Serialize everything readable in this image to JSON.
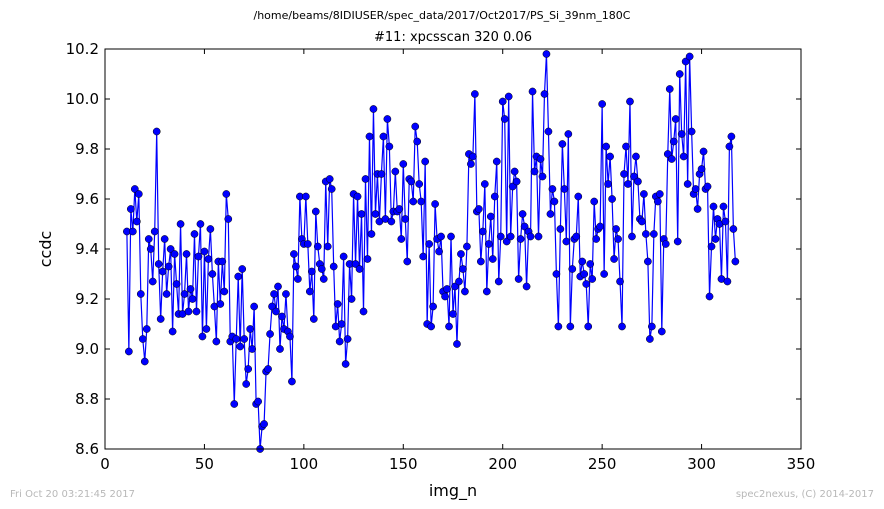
{
  "figure": {
    "suptitle": "/home/beams/8IDIUSER/spec_data/2017/Oct2017/PS_Si_39nm_180C",
    "footer_left": "Fri Oct 20 03:21:45 2017",
    "footer_right": "spec2nexus, (C) 2014-2017"
  },
  "chart_data": {
    "type": "line",
    "title": "#11: xpcsscan 320 0.06",
    "xlabel": "img_n",
    "ylabel": "ccdc",
    "xlim": [
      0,
      350
    ],
    "ylim": [
      8.6,
      10.2
    ],
    "xticks": [
      0,
      50,
      100,
      150,
      200,
      250,
      300,
      350
    ],
    "yticks": [
      8.6,
      8.8,
      9.0,
      9.2,
      9.4,
      9.6,
      9.8,
      10.0,
      10.2
    ],
    "grid": false,
    "line_color": "#0000ff",
    "marker": "circle",
    "x_start": 11,
    "series": [
      {
        "values": [
          9.47,
          8.99,
          9.56,
          9.47,
          9.64,
          9.51,
          9.62,
          9.22,
          9.04,
          8.95,
          9.08,
          9.44,
          9.4,
          9.27,
          9.47,
          9.87,
          9.34,
          9.12,
          9.31,
          9.44,
          9.22,
          9.33,
          9.4,
          9.07,
          9.38,
          9.26,
          9.14,
          9.5,
          9.14,
          9.22,
          9.38,
          9.15,
          9.24,
          9.2,
          9.46,
          9.15,
          9.37,
          9.5,
          9.05,
          9.39,
          9.08,
          9.36,
          9.48,
          9.3,
          9.17,
          9.03,
          9.35,
          9.18,
          9.35,
          9.23,
          9.62,
          9.52,
          9.03,
          9.05,
          8.78,
          9.04,
          9.29,
          9.01,
          9.32,
          9.04,
          8.86,
          8.92,
          9.08,
          9.0,
          9.17,
          8.78,
          8.79,
          8.6,
          8.69,
          8.7,
          8.91,
          8.92,
          9.06,
          9.17,
          9.22,
          9.15,
          9.25,
          9.0,
          9.13,
          9.08,
          9.22,
          9.07,
          9.05,
          8.87,
          9.38,
          9.33,
          9.28,
          9.61,
          9.44,
          9.42,
          9.61,
          9.42,
          9.23,
          9.31,
          9.12,
          9.55,
          9.41,
          9.34,
          9.32,
          9.28,
          9.67,
          9.41,
          9.68,
          9.64,
          9.33,
          9.09,
          9.18,
          9.03,
          9.1,
          9.37,
          8.94,
          9.04,
          9.34,
          9.2,
          9.62,
          9.34,
          9.61,
          9.32,
          9.54,
          9.15,
          9.68,
          9.36,
          9.85,
          9.46,
          9.96,
          9.54,
          9.7,
          9.51,
          9.7,
          9.85,
          9.52,
          9.92,
          9.81,
          9.51,
          9.55,
          9.71,
          9.55,
          9.56,
          9.44,
          9.74,
          9.52,
          9.35,
          9.68,
          9.67,
          9.59,
          9.89,
          9.83,
          9.66,
          9.59,
          9.37,
          9.75,
          9.1,
          9.42,
          9.09,
          9.17,
          9.58,
          9.44,
          9.39,
          9.45,
          9.23,
          9.21,
          9.24,
          9.09,
          9.45,
          9.14,
          9.25,
          9.02,
          9.27,
          9.38,
          9.32,
          9.23,
          9.41,
          9.78,
          9.74,
          9.77,
          10.02,
          9.55,
          9.56,
          9.35,
          9.47,
          9.66,
          9.23,
          9.42,
          9.53,
          9.36,
          9.61,
          9.75,
          9.27,
          9.45,
          9.99,
          9.92,
          9.43,
          10.01,
          9.45,
          9.65,
          9.71,
          9.67,
          9.28,
          9.44,
          9.54,
          9.49,
          9.25,
          9.47,
          9.45,
          10.03,
          9.71,
          9.77,
          9.45,
          9.76,
          9.69,
          10.02,
          10.18,
          9.87,
          9.54,
          9.64,
          9.59,
          9.3,
          9.09,
          9.48,
          9.82,
          9.64,
          9.43,
          9.86,
          9.09,
          9.32,
          9.44,
          9.45,
          9.61,
          9.29,
          9.35,
          9.3,
          9.26,
          9.09,
          9.34,
          9.28,
          9.59,
          9.44,
          9.48,
          9.49,
          9.98,
          9.3,
          9.81,
          9.66,
          9.77,
          9.6,
          9.36,
          9.48,
          9.44,
          9.27,
          9.09,
          9.7,
          9.81,
          9.66,
          9.99,
          9.45,
          9.69,
          9.77,
          9.67,
          9.52,
          9.51,
          9.62,
          9.46,
          9.35,
          9.04,
          9.09,
          9.46,
          9.61,
          9.59,
          9.62,
          9.07,
          9.44,
          9.42,
          9.78,
          10.04,
          9.76,
          9.83,
          9.92,
          9.43,
          10.1,
          9.86,
          9.77,
          10.15,
          9.66,
          10.17,
          9.87,
          9.62,
          9.64,
          9.56,
          9.7,
          9.72,
          9.79,
          9.64,
          9.65,
          9.21,
          9.41,
          9.57,
          9.44,
          9.52,
          9.5,
          9.28,
          9.57,
          9.51,
          9.27,
          9.81,
          9.85,
          9.48,
          9.35
        ]
      }
    ]
  }
}
